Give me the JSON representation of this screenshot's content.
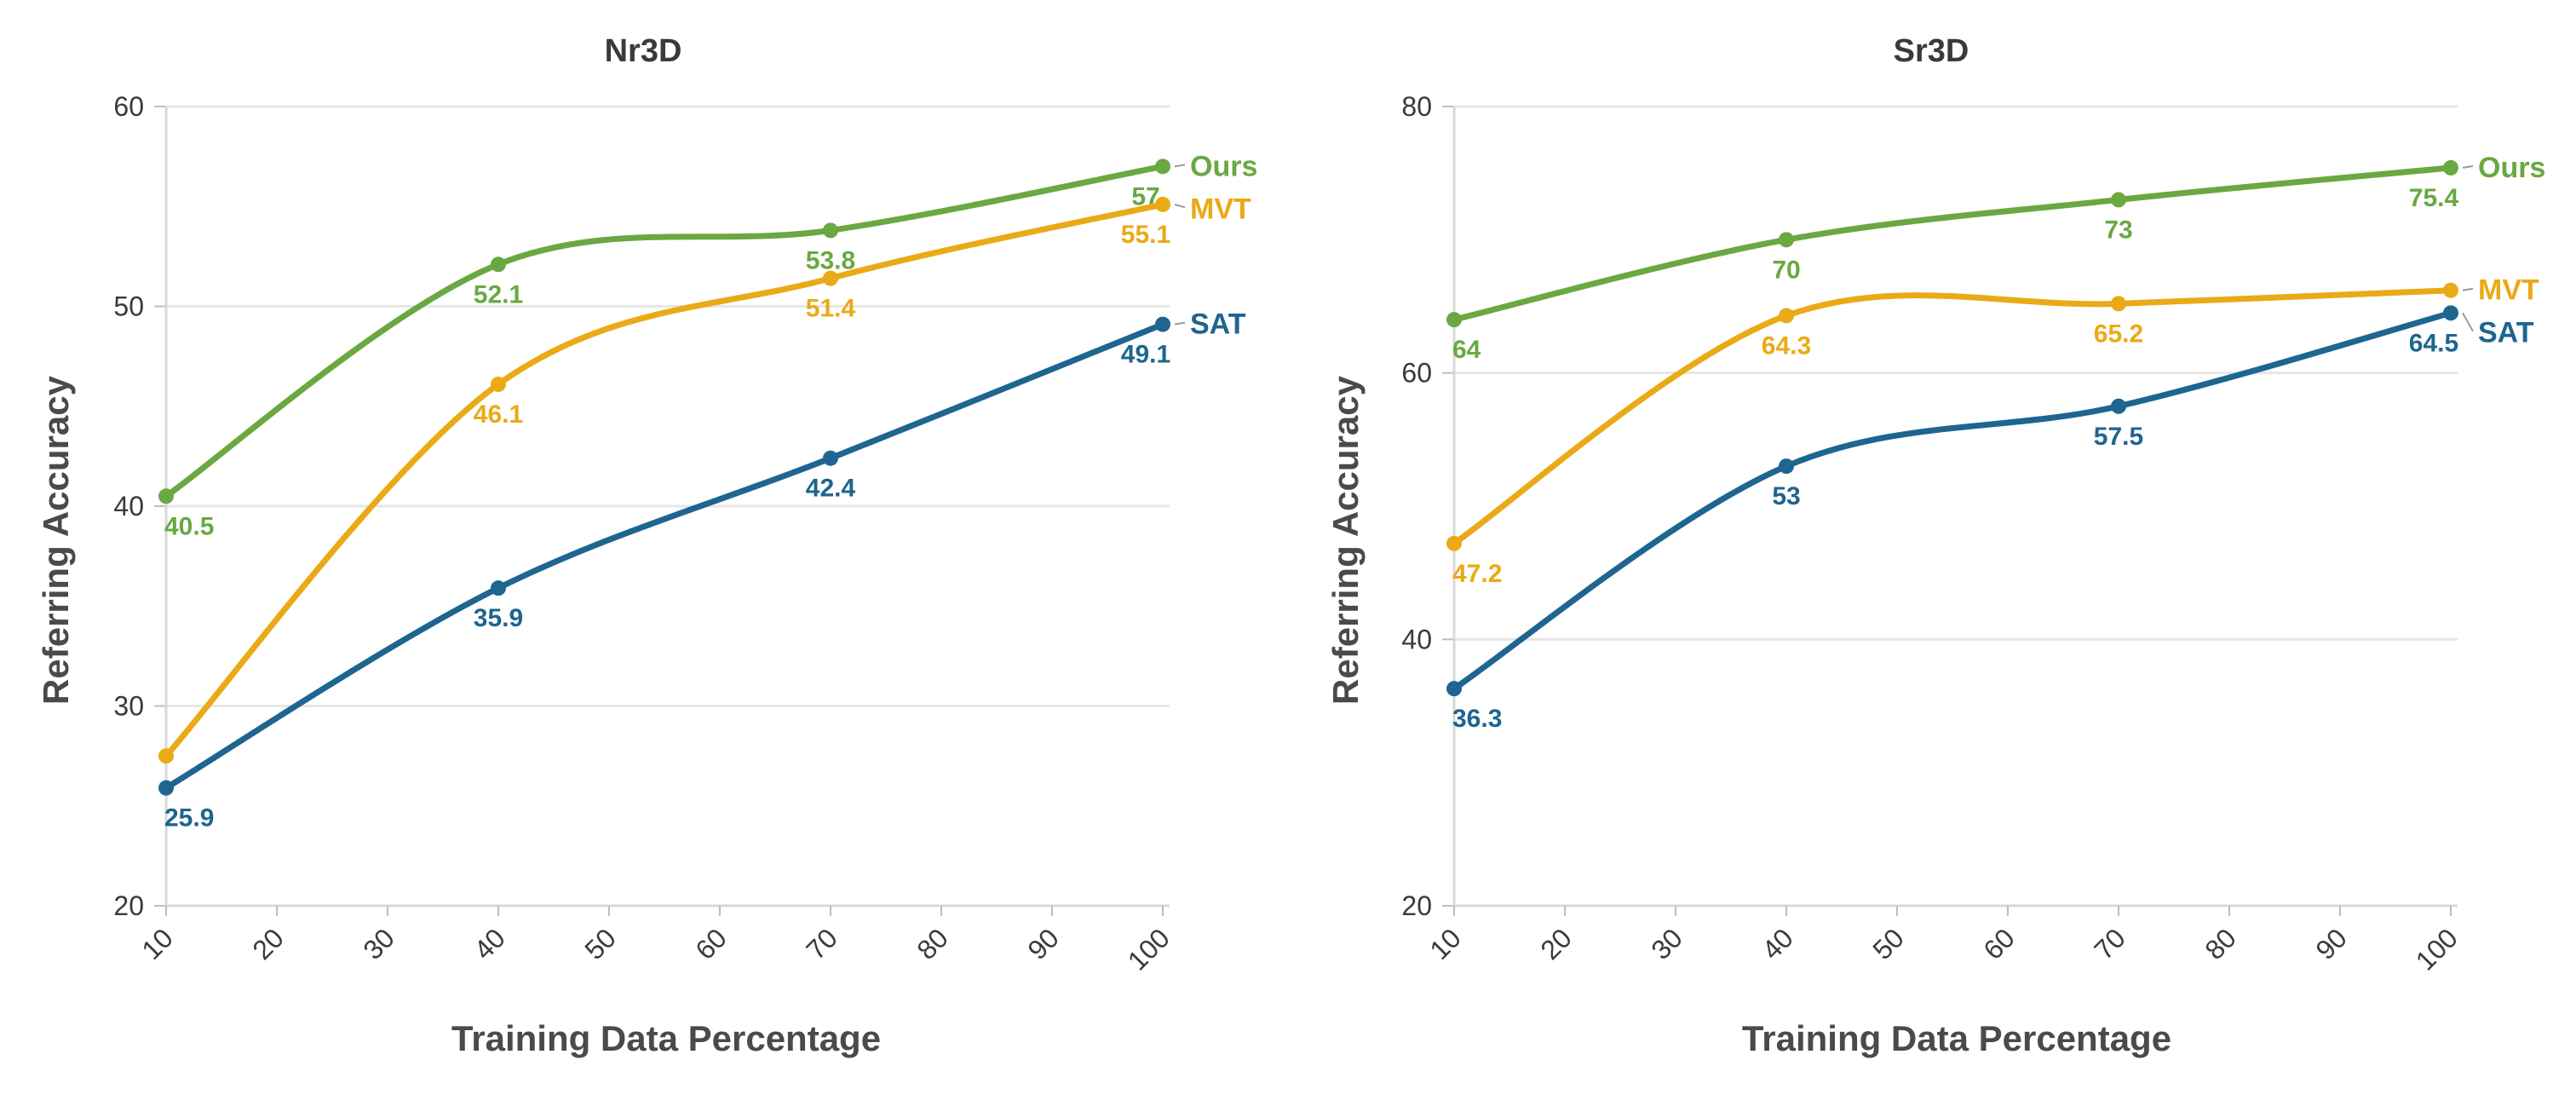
{
  "chart_data": [
    {
      "type": "line",
      "title": "Nr3D",
      "xlabel": "Training Data Percentage",
      "ylabel": "Referring Accuracy",
      "x_ticks": [
        10,
        20,
        30,
        40,
        50,
        60,
        70,
        80,
        90,
        100
      ],
      "y_ticks": [
        20,
        30,
        40,
        50,
        60
      ],
      "xlim": [
        10,
        100
      ],
      "ylim": [
        20,
        60
      ],
      "x": [
        10,
        40,
        70,
        100
      ],
      "grid": "horizontal",
      "legend": "right-end labels",
      "series": [
        {
          "name": "Ours",
          "color": "#6aa842",
          "values": [
            40.5,
            52.1,
            53.8,
            57
          ]
        },
        {
          "name": "MVT",
          "color": "#eaaa16",
          "values": [
            27.5,
            46.1,
            51.4,
            55.1
          ]
        },
        {
          "name": "SAT",
          "color": "#1e6590",
          "values": [
            25.9,
            35.9,
            42.4,
            49.1
          ]
        }
      ],
      "data_labels": {
        "Ours": [
          "40.5",
          "52.1",
          "53.8",
          "57"
        ],
        "MVT": [
          "",
          "46.1",
          "51.4",
          "55.1"
        ],
        "SAT": [
          "25.9",
          "35.9",
          "42.4",
          "49.1"
        ]
      }
    },
    {
      "type": "line",
      "title": "Sr3D",
      "xlabel": "Training Data Percentage",
      "ylabel": "Referring Accuracy",
      "x_ticks": [
        10,
        20,
        30,
        40,
        50,
        60,
        70,
        80,
        90,
        100
      ],
      "y_ticks": [
        20,
        40,
        60,
        80
      ],
      "xlim": [
        10,
        100
      ],
      "ylim": [
        20,
        80
      ],
      "x": [
        10,
        40,
        70,
        100
      ],
      "grid": "horizontal",
      "legend": "right-end labels",
      "series": [
        {
          "name": "Ours",
          "color": "#6aa842",
          "values": [
            64,
            70,
            73,
            75.4
          ]
        },
        {
          "name": "MVT",
          "color": "#eaaa16",
          "values": [
            47.2,
            64.3,
            65.2,
            66.2
          ]
        },
        {
          "name": "SAT",
          "color": "#1e6590",
          "values": [
            36.3,
            53,
            57.5,
            64.5
          ]
        }
      ],
      "data_labels": {
        "Ours": [
          "64",
          "70",
          "73",
          "75.4"
        ],
        "MVT": [
          "47.2",
          "64.3",
          "65.2",
          ""
        ],
        "SAT": [
          "36.3",
          "53",
          "57.5",
          "64.5"
        ]
      }
    }
  ]
}
